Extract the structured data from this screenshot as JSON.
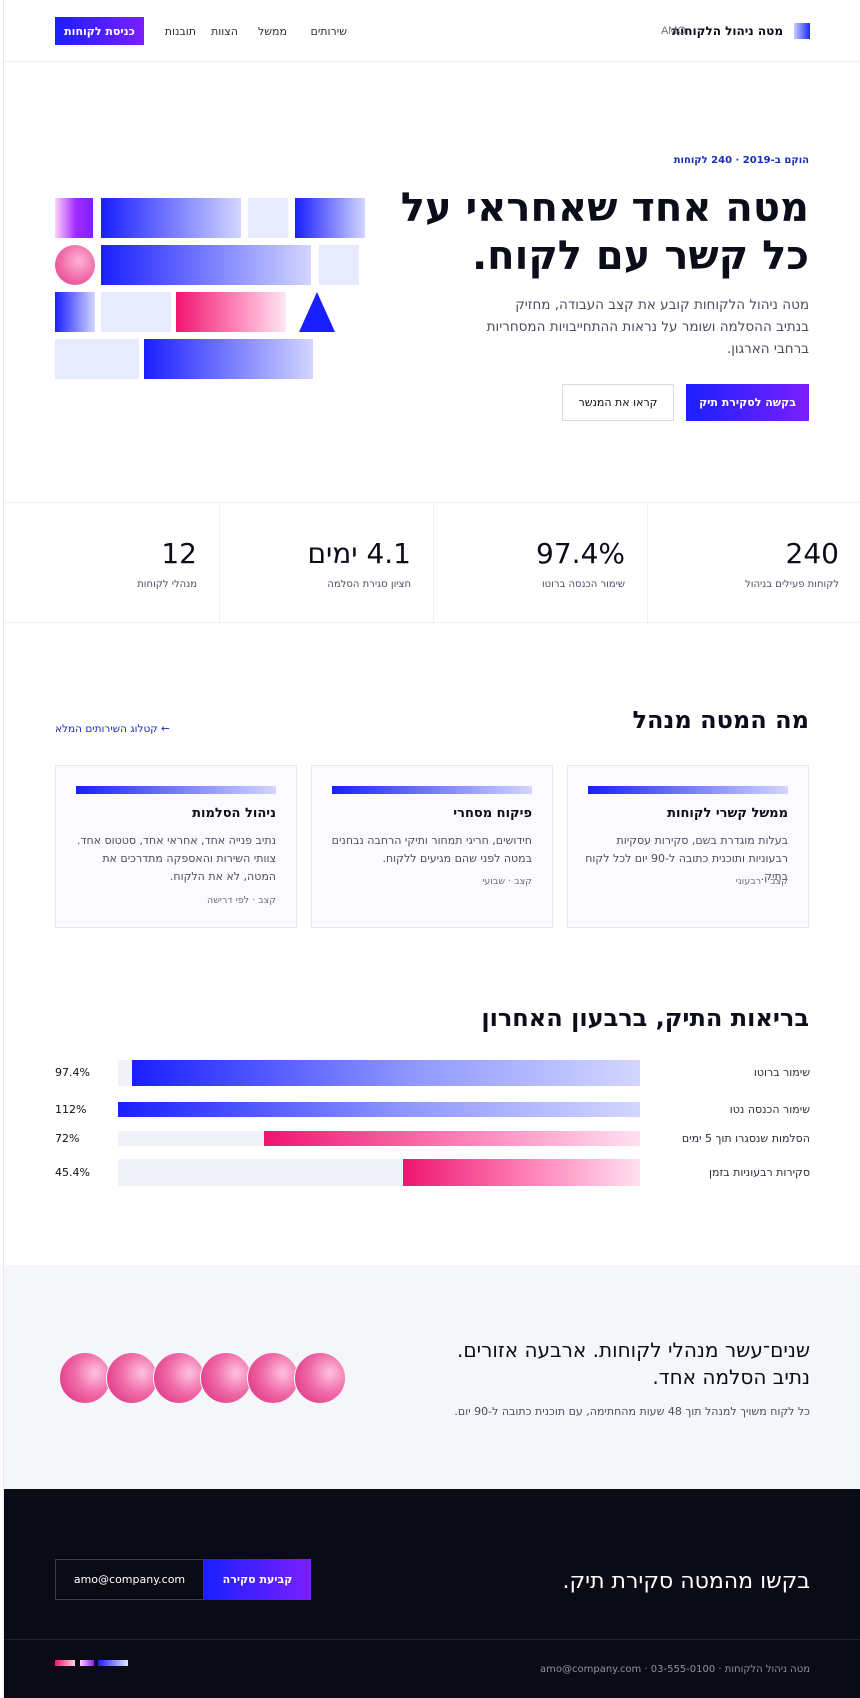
{
  "header": {
    "brand_name": "מטה ניהול הלקוחות",
    "brand_code": "AMO",
    "nav": [
      "שירותים",
      "ממשל",
      "הצוות",
      "תובנות"
    ],
    "login_label": "כניסת לקוחות"
  },
  "hero": {
    "eyebrow": "הוקם ב-2019 · 240 לקוחות",
    "title": "מטה אחד שאחראי על כל קשר עם לקוח.",
    "description": "מטה ניהול הלקוחות קובע את קצב העבודה, מחזיק בנתיב ההסלמה ושומר על נראות ההתחייבויות המסחריות ברחבי הארגון.",
    "primary_button": "בקשה לסקירת תיק",
    "secondary_button": "קראו את המנשר"
  },
  "stats": [
    {
      "value": "240",
      "label": "לקוחות פעילים בניהול"
    },
    {
      "value": "97.4%",
      "label": "שימור הכנסה ברוטו"
    },
    {
      "value": "4.1 ימים",
      "label": "חציון סגירת הסלמה"
    },
    {
      "value": "12",
      "label": "מנהלי לקוחות"
    }
  ],
  "services": {
    "title": "מה המטה מנהל",
    "catalog_link": "← קטלוג השירותים המלא",
    "cards": [
      {
        "title": "ממשל קשרי לקוחות",
        "description": "בעלות מוגדרת בשם, סקירות עסקיות רבעוניות ותוכנית כתובה ל-90 יום לכל לקוח בתיק.",
        "meta": "קצב · רבעוני"
      },
      {
        "title": "פיקוח מסחרי",
        "description": "חידושים, חריגי תמחור ותיקי הרחבה נבחנים במטה לפני שהם מגיעים ללקוח.",
        "meta": "קצב · שבועי"
      },
      {
        "title": "ניהול הסלמות",
        "description": "נתיב פנייה אחד, אחראי אחד, סטטוס אחד. צוותי השירות והאספקה מתדרכים את המטה, לא את הלקוח.",
        "meta": "קצב · לפי דרישה"
      }
    ]
  },
  "health": {
    "title": "בריאות התיק, ברבעון האחרון",
    "rows": [
      {
        "label": "שימור ברוטו",
        "value": "97.4%",
        "fill": 0.974,
        "color": "blue"
      },
      {
        "label": "שימור הכנסה נטו",
        "value": "112%",
        "fill": 1.0,
        "color": "blue"
      },
      {
        "label": "הסלמות שנסגרו תוך 5 ימים",
        "value": "72%",
        "fill": 0.72,
        "color": "pink"
      },
      {
        "label": "סקירות רבעוניות בזמן",
        "value": "45.4%",
        "fill": 0.454,
        "color": "pink"
      }
    ]
  },
  "team": {
    "title": "שנים־עשר מנהלי לקוחות. ארבעה אזורים. נתיב הסלמה אחד.",
    "subtitle": "כל לקוח משויך למנהל תוך 48 שעות מהחתימה, עם תוכנית כתובה ל-90 יום.",
    "avatar_count": 6
  },
  "cta": {
    "title": "בקשו מהמטה סקירת תיק.",
    "email_value": "amo@company.com",
    "button_label": "קביעת סקירה"
  },
  "footer": {
    "text": "מטה ניהול הלקוחות · 03-555-0100 · amo@company.com"
  },
  "colors": {
    "accent_blue": "#1a1fff",
    "accent_purple": "#7a1fff",
    "accent_pink": "#f0156f",
    "dark_bg": "#0a0b14"
  }
}
